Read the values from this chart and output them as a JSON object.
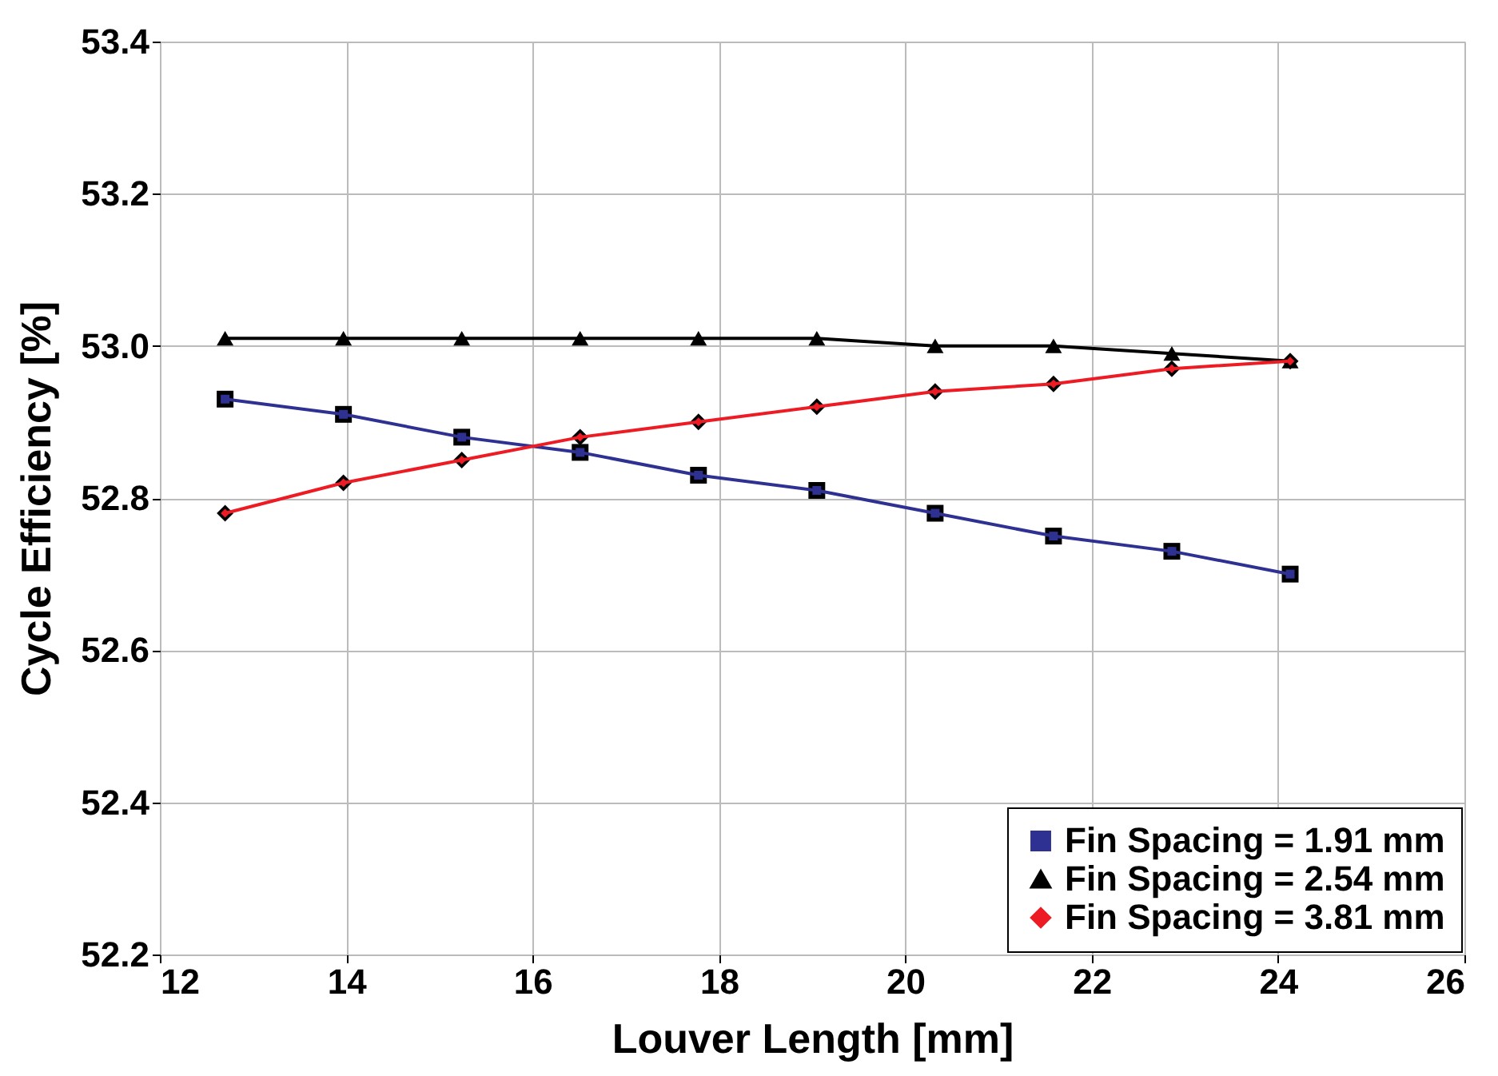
{
  "chart_data": {
    "type": "line",
    "xlabel": "Louver Length [mm]",
    "ylabel": "Cycle Efficiency [%]",
    "x": [
      12.7,
      13.97,
      15.24,
      16.51,
      17.78,
      19.05,
      20.32,
      21.59,
      22.86,
      24.13
    ],
    "series": [
      {
        "name": "Fin Spacing = 1.91 mm",
        "color": "#2e3192",
        "marker": "square",
        "values": [
          52.93,
          52.91,
          52.88,
          52.86,
          52.83,
          52.81,
          52.78,
          52.75,
          52.73,
          52.7
        ]
      },
      {
        "name": "Fin Spacing = 2.54 mm",
        "color": "#000000",
        "marker": "triangle",
        "values": [
          53.01,
          53.01,
          53.01,
          53.01,
          53.01,
          53.01,
          53.0,
          53.0,
          52.99,
          52.98
        ]
      },
      {
        "name": "Fin Spacing = 3.81 mm",
        "color": "#ed1c24",
        "marker": "diamond",
        "values": [
          52.78,
          52.82,
          52.85,
          52.88,
          52.9,
          52.92,
          52.94,
          52.95,
          52.97,
          52.98
        ]
      }
    ],
    "xlim": [
      12,
      26
    ],
    "xticks": [
      12,
      14,
      16,
      18,
      20,
      22,
      24,
      26
    ],
    "ylim": [
      52.2,
      53.4
    ],
    "yticks": [
      52.2,
      52.4,
      52.6,
      52.8,
      {
        "value": 53.0,
        "label": "53.0"
      },
      53.2,
      53.4
    ],
    "grid": true,
    "legend": "bottom right"
  }
}
